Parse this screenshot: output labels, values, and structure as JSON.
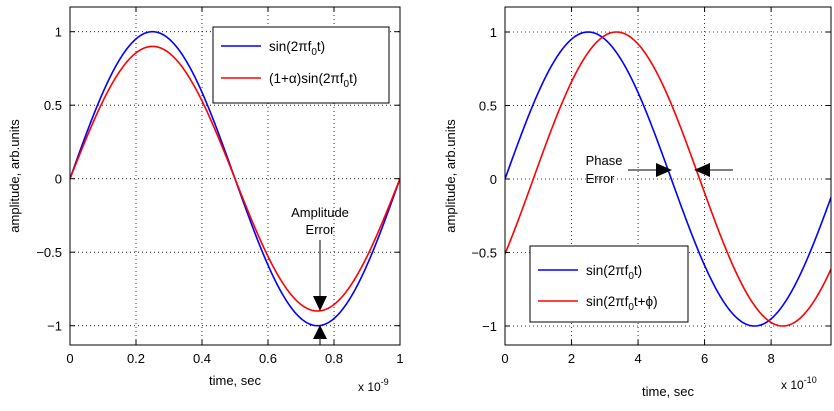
{
  "chart_data": [
    {
      "type": "line",
      "xlabel": "time, sec",
      "ylabel": "amplitude, arb.units",
      "x_multiplier_label": "x 10",
      "x_multiplier_exponent": "-9",
      "xlim": [
        0,
        1
      ],
      "ylim": [
        -1.1,
        1.05
      ],
      "xticks": [
        "0",
        "0.2",
        "0.4",
        "0.6",
        "0.8",
        "1"
      ],
      "yticks": [
        "-1",
        "-0.5",
        "0",
        "0.5",
        "1"
      ],
      "grid": true,
      "legend_position": "top-right",
      "x_unit_scale": 1e-09,
      "series": [
        {
          "name": "sin(2πf0t)",
          "legend_main": "sin(2πf",
          "legend_sub": "0",
          "legend_tail": "t)",
          "color": "#0000ff",
          "frequency": 1000000000.0,
          "amplitude": 1.0,
          "phase": 0
        },
        {
          "name": "(1+α)sin(2πf0t)",
          "legend_main": "(1+α)sin(2πf",
          "legend_sub": "0",
          "legend_tail": "t)",
          "color": "#ff0000",
          "frequency": 1000000000.0,
          "amplitude": 0.9,
          "phase": 0
        }
      ],
      "annotations": [
        {
          "text": [
            "Amplitude",
            "Error"
          ],
          "x": 0.76
        }
      ]
    },
    {
      "type": "line",
      "xlabel": "time, sec",
      "ylabel": "amplitude, arb.units",
      "x_multiplier_label": "x 10",
      "x_multiplier_exponent": "-10",
      "xlim": [
        0,
        9.8
      ],
      "ylim": [
        -1.1,
        1.05
      ],
      "xticks": [
        "0",
        "2",
        "4",
        "6",
        "8"
      ],
      "yticks": [
        "-1",
        "-0.5",
        "0",
        "0.5",
        "1"
      ],
      "grid": true,
      "legend_position": "bottom-left",
      "x_unit_scale": 1e-10,
      "series": [
        {
          "name": "sin(2πf0t)",
          "legend_main": "sin(2πf",
          "legend_sub": "0",
          "legend_tail": "t)",
          "color": "#0000ff",
          "frequency": 1000000000.0,
          "amplitude": 1.0,
          "phase": 0
        },
        {
          "name": "sin(2πf0t+ϕ)",
          "legend_main": "sin(2πf",
          "legend_sub": "0",
          "legend_tail": "t+ϕ)",
          "color": "#ff0000",
          "frequency": 1000000000.0,
          "amplitude": 1.0,
          "phase": -0.5341
        }
      ],
      "annotations": [
        {
          "text": [
            "Phase",
            "Error"
          ],
          "x": 5.3
        }
      ]
    }
  ]
}
